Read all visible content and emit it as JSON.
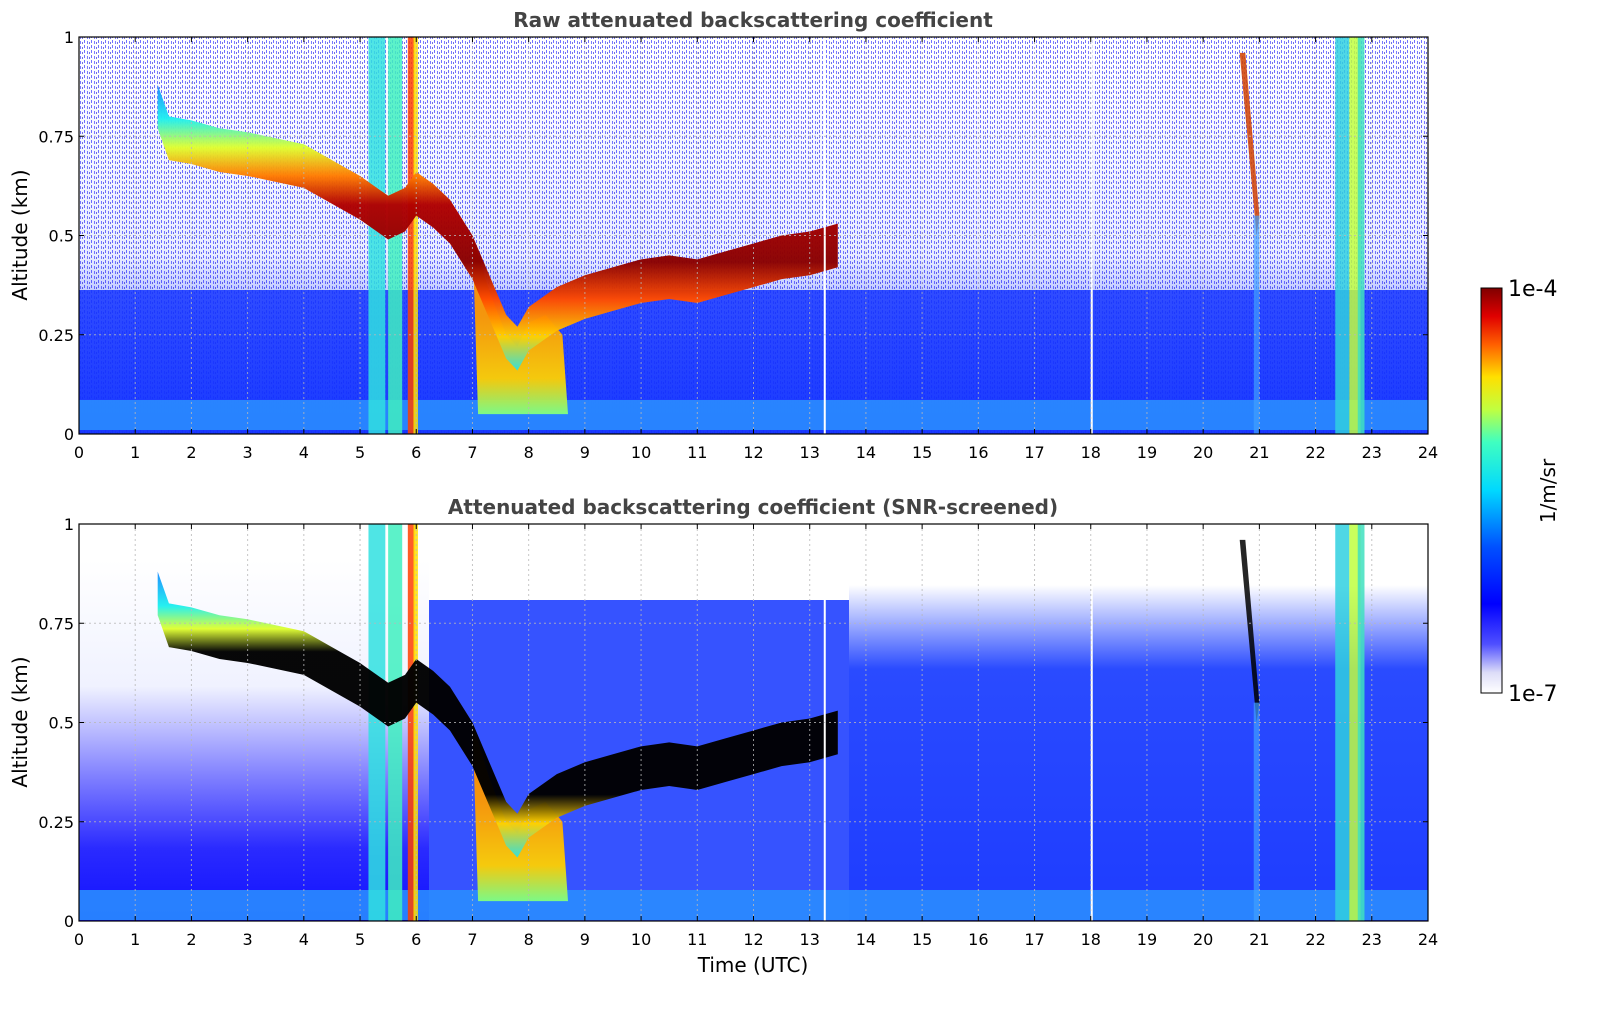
{
  "chart_data": [
    {
      "type": "heatmap",
      "title": "Raw attenuated backscattering coefficient",
      "xlabel": "",
      "ylabel": "Altitude (km)",
      "xlim": [
        0,
        24
      ],
      "ylim": [
        0,
        1
      ],
      "xticks": [
        "0",
        "1",
        "2",
        "3",
        "4",
        "5",
        "6",
        "7",
        "8",
        "9",
        "10",
        "11",
        "12",
        "13",
        "14",
        "15",
        "16",
        "17",
        "18",
        "19",
        "20",
        "21",
        "22",
        "23",
        "24"
      ],
      "yticks": [
        "0",
        "0.25",
        "0.5",
        "0.75",
        "1"
      ],
      "grid": true,
      "layer_top_km": [
        [
          1.4,
          0.88
        ],
        [
          1.6,
          0.8
        ],
        [
          2.0,
          0.79
        ],
        [
          2.5,
          0.77
        ],
        [
          3.0,
          0.76
        ],
        [
          3.5,
          0.745
        ],
        [
          4.0,
          0.73
        ],
        [
          4.5,
          0.69
        ],
        [
          5.0,
          0.65
        ],
        [
          5.5,
          0.6
        ],
        [
          5.8,
          0.62
        ],
        [
          6.0,
          0.66
        ],
        [
          6.3,
          0.63
        ],
        [
          6.6,
          0.59
        ],
        [
          7.0,
          0.5
        ],
        [
          7.3,
          0.4
        ],
        [
          7.6,
          0.3
        ],
        [
          7.8,
          0.27
        ],
        [
          8.0,
          0.32
        ],
        [
          8.5,
          0.37
        ],
        [
          9.0,
          0.4
        ],
        [
          9.5,
          0.42
        ],
        [
          10.0,
          0.44
        ],
        [
          10.5,
          0.45
        ],
        [
          11.0,
          0.44
        ],
        [
          11.5,
          0.46
        ],
        [
          12.0,
          0.48
        ],
        [
          12.5,
          0.5
        ],
        [
          13.0,
          0.51
        ],
        [
          13.5,
          0.53
        ]
      ],
      "color_scale": {
        "min": "1e-7",
        "max": "1e-4",
        "units": "1/m/sr",
        "colormap": "jet"
      }
    },
    {
      "type": "heatmap",
      "title": "Attenuated backscattering coefficient (SNR-screened)",
      "xlabel": "Time (UTC)",
      "ylabel": "Altitude (km)",
      "xlim": [
        0,
        24
      ],
      "ylim": [
        0,
        1
      ],
      "xticks": [
        "0",
        "1",
        "2",
        "3",
        "4",
        "5",
        "6",
        "7",
        "8",
        "9",
        "10",
        "11",
        "12",
        "13",
        "14",
        "15",
        "16",
        "17",
        "18",
        "19",
        "20",
        "21",
        "22",
        "23",
        "24"
      ],
      "yticks": [
        "0",
        "0.25",
        "0.5",
        "0.75",
        "1"
      ],
      "grid": true,
      "color_scale": {
        "min": "1e-7",
        "max": "1e-4",
        "units": "1/m/sr",
        "colormap": "jet"
      }
    }
  ],
  "colorbar": {
    "top_label": "1e-4",
    "bottom_label": "1e-7",
    "units": "1/m/sr"
  }
}
